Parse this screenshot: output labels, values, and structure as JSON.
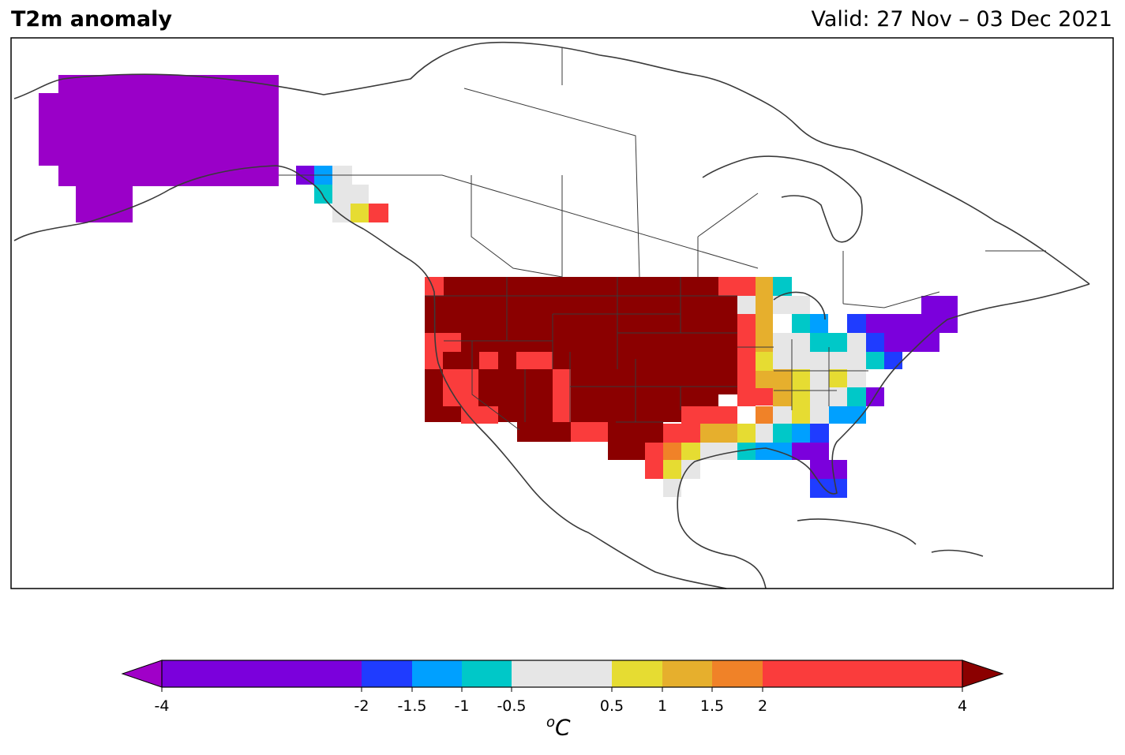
{
  "title": "T2m anomaly",
  "valid": "Valid: 27 Nov – 03 Dec 2021",
  "colorbar": {
    "units_sup": "o",
    "units_main": "C",
    "ticks": [
      "-4",
      "-2",
      "-1.5",
      "-1",
      "-0.5",
      "0.5",
      "1",
      "1.5",
      "2",
      "4"
    ],
    "bins": [
      {
        "from": -4,
        "to": -2,
        "color": "#7b00dc"
      },
      {
        "from": -2,
        "to": -1.5,
        "color": "#1f3cff"
      },
      {
        "from": -1.5,
        "to": -1,
        "color": "#00a0ff"
      },
      {
        "from": -1,
        "to": -0.5,
        "color": "#00c8c8"
      },
      {
        "from": -0.5,
        "to": 0.5,
        "color": "#e6e6e6"
      },
      {
        "from": 0.5,
        "to": 1,
        "color": "#e6dc32"
      },
      {
        "from": 1,
        "to": 1.5,
        "color": "#e6af2d"
      },
      {
        "from": 1.5,
        "to": 2,
        "color": "#f08228"
      },
      {
        "from": 2,
        "to": 4,
        "color": "#fa3c3c"
      }
    ],
    "under_color": "#a000c8",
    "over_color": "#8b0000"
  }
}
